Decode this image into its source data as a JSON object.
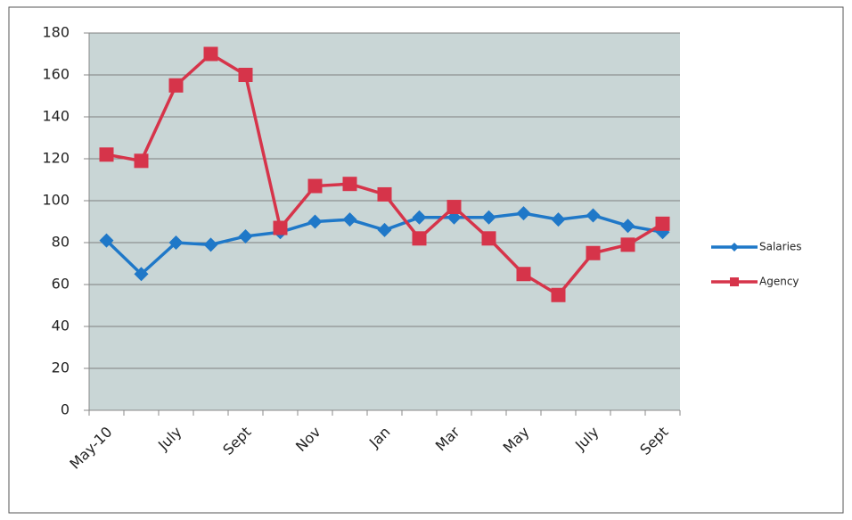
{
  "chart_data": {
    "type": "line",
    "categories": [
      "May-10",
      null,
      "July",
      null,
      "Sept",
      null,
      "Nov",
      null,
      "Jan",
      null,
      "Mar",
      null,
      "May",
      null,
      "July",
      null,
      "Sept"
    ],
    "series": [
      {
        "name": "Salaries",
        "color": "#1f78c8",
        "marker": "diamond",
        "values": [
          81,
          65,
          80,
          79,
          83,
          85,
          90,
          91,
          86,
          92,
          92,
          92,
          94,
          91,
          93,
          88,
          85
        ]
      },
      {
        "name": "Agency",
        "color": "#d6344a",
        "marker": "square",
        "values": [
          122,
          119,
          155,
          170,
          160,
          87,
          107,
          108,
          103,
          82,
          97,
          82,
          65,
          55,
          75,
          79,
          89
        ]
      }
    ],
    "ylim": [
      0,
      180
    ],
    "yticks": [
      0,
      20,
      40,
      60,
      80,
      100,
      120,
      140,
      160,
      180
    ],
    "grid": true,
    "legend": "right"
  }
}
